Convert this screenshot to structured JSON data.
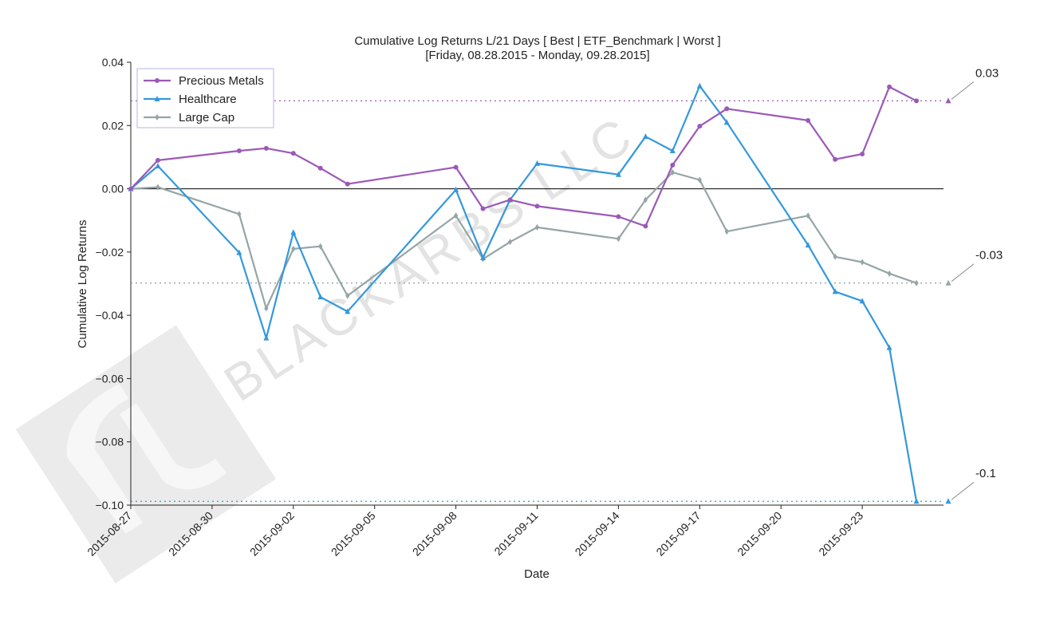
{
  "chart_data": {
    "type": "line",
    "title": "Cumulative Log Returns L/21 Days [ Best | ETF_Benchmark | Worst ]",
    "subtitle": "[Friday, 08.28.2015 - Monday, 09.28.2015]",
    "xlabel": "Date",
    "ylabel": "Cumulative Log Returns",
    "xlim": [
      "2015-08-27",
      "2015-09-26"
    ],
    "ylim": [
      -0.1,
      0.04
    ],
    "x_ticks": [
      "2015-08-27",
      "2015-08-30",
      "2015-09-02",
      "2015-09-05",
      "2015-09-08",
      "2015-09-11",
      "2015-09-14",
      "2015-09-17",
      "2015-09-20",
      "2015-09-23"
    ],
    "y_ticks": [
      "0.04",
      "0.02",
      "0.00",
      "−0.02",
      "−0.04",
      "−0.06",
      "−0.08",
      "−0.10"
    ],
    "y_tick_values": [
      0.04,
      0.02,
      0.0,
      -0.02,
      -0.04,
      -0.06,
      -0.08,
      -0.1
    ],
    "zero_line": 0.0,
    "legend_position": "top-left",
    "series": [
      {
        "name": "Precious Metals",
        "color": "#9b59b6",
        "marker": "circle",
        "x": [
          "2015-08-27",
          "2015-08-28",
          "2015-08-31",
          "2015-09-01",
          "2015-09-02",
          "2015-09-03",
          "2015-09-04",
          "2015-09-08",
          "2015-09-09",
          "2015-09-10",
          "2015-09-11",
          "2015-09-14",
          "2015-09-15",
          "2015-09-16",
          "2015-09-17",
          "2015-09-18",
          "2015-09-21",
          "2015-09-22",
          "2015-09-23",
          "2015-09-24",
          "2015-09-25"
        ],
        "values": [
          0.0,
          0.009,
          0.012,
          0.0128,
          0.0112,
          0.0065,
          0.0015,
          0.0068,
          -0.0063,
          -0.0035,
          -0.0055,
          -0.0088,
          -0.0118,
          0.0075,
          0.0198,
          0.0253,
          0.0216,
          0.0093,
          0.011,
          0.0322,
          0.0278
        ]
      },
      {
        "name": "Healthcare",
        "color": "#3498db",
        "marker": "triangle",
        "x": [
          "2015-08-27",
          "2015-08-28",
          "2015-08-31",
          "2015-09-01",
          "2015-09-02",
          "2015-09-03",
          "2015-09-04",
          "2015-09-08",
          "2015-09-09",
          "2015-09-10",
          "2015-09-11",
          "2015-09-14",
          "2015-09-15",
          "2015-09-16",
          "2015-09-17",
          "2015-09-18",
          "2015-09-21",
          "2015-09-22",
          "2015-09-23",
          "2015-09-24",
          "2015-09-25"
        ],
        "values": [
          0.0,
          0.0072,
          -0.0202,
          -0.0472,
          -0.0138,
          -0.0342,
          -0.0388,
          -0.0003,
          -0.0218,
          -0.0035,
          0.008,
          0.0045,
          0.0165,
          0.012,
          0.0325,
          0.021,
          -0.0178,
          -0.0325,
          -0.0355,
          -0.0502,
          -0.0988
        ]
      },
      {
        "name": "Large Cap",
        "color": "#95a5a6",
        "marker": "diamond",
        "x": [
          "2015-08-27",
          "2015-08-28",
          "2015-08-31",
          "2015-09-01",
          "2015-09-02",
          "2015-09-03",
          "2015-09-04",
          "2015-09-08",
          "2015-09-09",
          "2015-09-10",
          "2015-09-11",
          "2015-09-14",
          "2015-09-15",
          "2015-09-16",
          "2015-09-17",
          "2015-09-18",
          "2015-09-21",
          "2015-09-22",
          "2015-09-23",
          "2015-09-24",
          "2015-09-25"
        ],
        "values": [
          0.0,
          0.0005,
          -0.008,
          -0.0378,
          -0.019,
          -0.0182,
          -0.0338,
          -0.0085,
          -0.0222,
          -0.0168,
          -0.0122,
          -0.0158,
          -0.0035,
          0.0052,
          0.0028,
          -0.0135,
          -0.0085,
          -0.0215,
          -0.0232,
          -0.0268,
          -0.0298
        ]
      }
    ],
    "annotations": [
      {
        "label": "0.03",
        "value": 0.0278,
        "color": "#9b59b6"
      },
      {
        "label": "-0.03",
        "value": -0.0298,
        "color": "#95a5a6"
      },
      {
        "label": "-0.1",
        "value": -0.0988,
        "color": "#3498db"
      }
    ],
    "watermark": "BLACKARBS LLC"
  }
}
